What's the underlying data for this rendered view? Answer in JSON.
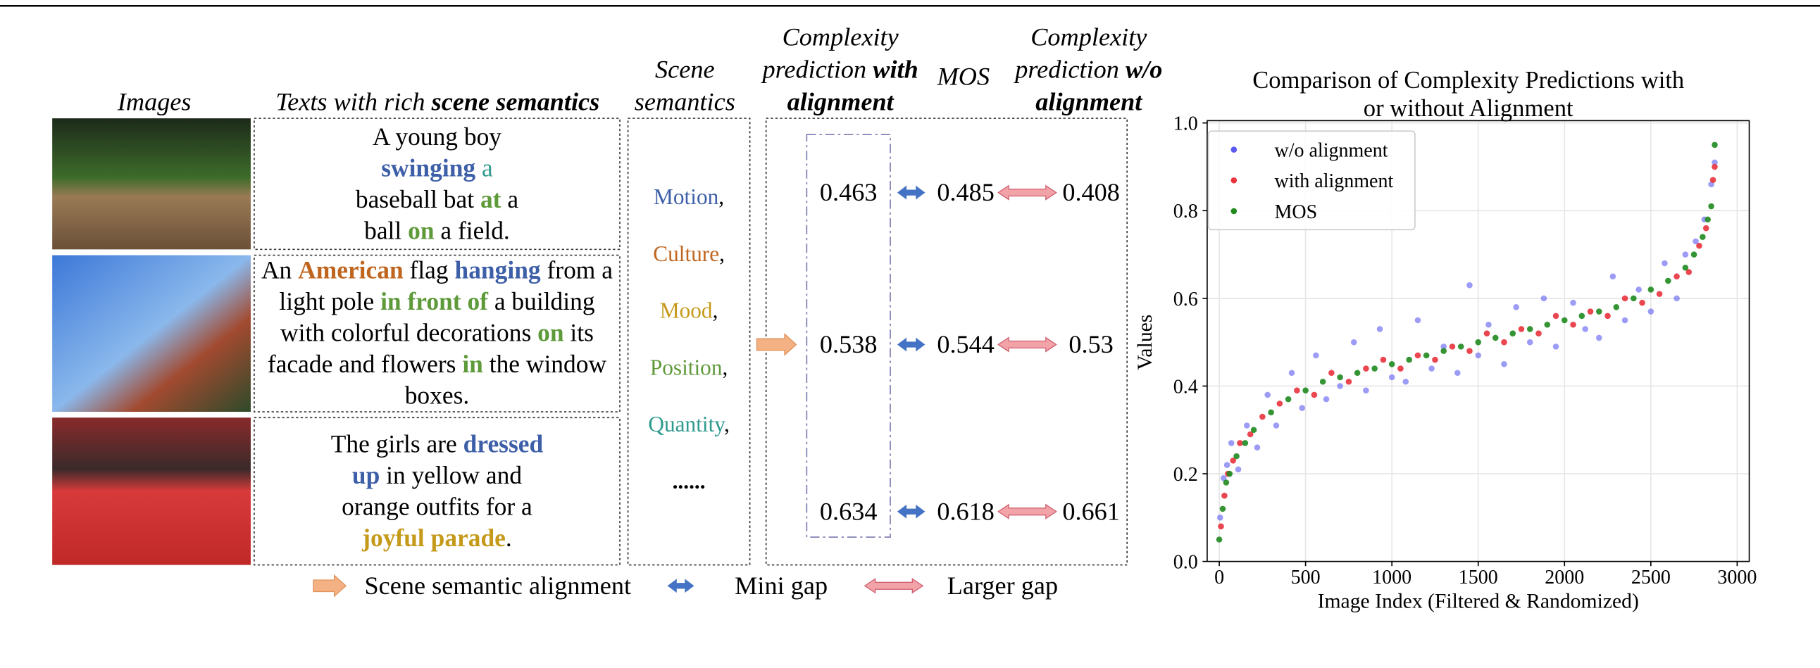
{
  "figure": {
    "headers": {
      "images": "Images",
      "texts": [
        {
          "text": "Texts with rich "
        },
        {
          "text": "scene semantics",
          "bold": true
        }
      ],
      "scene": "Scene semantics",
      "with": [
        {
          "text": "Complexity prediction "
        },
        {
          "text": "with alignment",
          "bold": true
        }
      ],
      "mos": "MOS",
      "without": [
        {
          "text": "Complexity prediction "
        },
        {
          "text": "w/o alignment",
          "bold": true
        }
      ]
    },
    "captions": [
      [
        {
          "text": "A young boy "
        },
        {
          "text": "swinging",
          "bold": true,
          "color": "#3d5fa8"
        },
        {
          "text": " "
        },
        {
          "text": "a",
          "color": "#2e9a8e"
        },
        {
          "text": " baseball bat "
        },
        {
          "text": "at",
          "bold": true,
          "color": "#5e9a3a"
        },
        {
          "text": " a ball "
        },
        {
          "text": "on",
          "bold": true,
          "color": "#5e9a3a"
        },
        {
          "text": " a field."
        }
      ],
      [
        {
          "text": "An "
        },
        {
          "text": "American",
          "bold": true,
          "color": "#c0651e"
        },
        {
          "text": " flag "
        },
        {
          "text": "hanging",
          "bold": true,
          "color": "#3d5fa8"
        },
        {
          "text": " from a light pole "
        },
        {
          "text": "in front of",
          "bold": true,
          "color": "#5e9a3a"
        },
        {
          "text": " a building with colorful decorations "
        },
        {
          "text": "on",
          "bold": true,
          "color": "#5e9a3a"
        },
        {
          "text": " its facade and flowers "
        },
        {
          "text": "in",
          "bold": true,
          "color": "#5e9a3a"
        },
        {
          "text": " the window boxes."
        }
      ],
      [
        {
          "text": "The girls are "
        },
        {
          "text": "dressed up",
          "bold": true,
          "color": "#3d5fa8"
        },
        {
          "text": " in yellow and orange outfits for a "
        },
        {
          "text": "joyful parade",
          "bold": true,
          "color": "#c59a1a"
        },
        {
          "text": "."
        }
      ]
    ],
    "semantics": [
      [
        {
          "text": "Motion",
          "color": "#3d5fa8"
        },
        {
          "text": ","
        }
      ],
      [
        {
          "text": "Culture",
          "color": "#c0651e"
        },
        {
          "text": ","
        }
      ],
      [
        {
          "text": "Mood",
          "color": "#c59a1a"
        },
        {
          "text": ","
        }
      ],
      [
        {
          "text": "Position",
          "color": "#5e9a3a"
        },
        {
          "text": ","
        }
      ],
      [
        {
          "text": "Quantity",
          "color": "#2e9a8e"
        },
        {
          "text": ","
        }
      ],
      [
        {
          "text": "......",
          "bold": true
        }
      ]
    ],
    "scores": [
      {
        "with": 0.463,
        "mos": 0.485,
        "without": 0.408
      },
      {
        "with": 0.538,
        "mos": 0.544,
        "without": 0.53
      },
      {
        "with": 0.634,
        "mos": 0.618,
        "without": 0.661
      }
    ],
    "legend": [
      "Scene semantic alignment",
      "Mini gap",
      "Larger gap"
    ]
  },
  "chart_data": {
    "type": "scatter",
    "title": "Comparison of Complexity Predictions with or without Alignment",
    "x_label": "Image Index (Filtered & Randomized)",
    "y_label": "Values",
    "xlim": [
      -70,
      3070
    ],
    "ylim": [
      0,
      1
    ],
    "xticks": [
      0,
      500,
      1000,
      1500,
      2000,
      2500,
      3000
    ],
    "yticks": [
      {
        "value": 0,
        "label": "0.0"
      },
      0.2,
      0.4,
      0.6,
      0.8,
      {
        "value": 1,
        "label": "1.0"
      }
    ],
    "grid": true,
    "legend_position": "upper left",
    "series": [
      {
        "name": "w/o alignment",
        "color": "#5a5af0",
        "x": [
          5,
          25,
          45,
          70,
          110,
          160,
          220,
          280,
          330,
          420,
          480,
          560,
          620,
          700,
          780,
          850,
          930,
          1000,
          1080,
          1150,
          1230,
          1300,
          1380,
          1450,
          1500,
          1560,
          1650,
          1720,
          1800,
          1880,
          1950,
          2050,
          2120,
          2200,
          2280,
          2350,
          2430,
          2500,
          2580,
          2650,
          2700,
          2760,
          2810,
          2850,
          2870
        ],
        "values": [
          0.1,
          0.19,
          0.22,
          0.27,
          0.21,
          0.31,
          0.26,
          0.38,
          0.31,
          0.43,
          0.35,
          0.47,
          0.37,
          0.4,
          0.5,
          0.39,
          0.53,
          0.42,
          0.41,
          0.55,
          0.44,
          0.49,
          0.43,
          0.63,
          0.47,
          0.54,
          0.45,
          0.58,
          0.5,
          0.6,
          0.49,
          0.59,
          0.53,
          0.51,
          0.65,
          0.55,
          0.62,
          0.57,
          0.68,
          0.6,
          0.7,
          0.73,
          0.78,
          0.86,
          0.91
        ]
      },
      {
        "name": "with alignment",
        "color": "#e8323c",
        "x": [
          10,
          30,
          50,
          80,
          120,
          180,
          250,
          350,
          450,
          550,
          650,
          750,
          850,
          950,
          1050,
          1150,
          1250,
          1350,
          1450,
          1550,
          1650,
          1750,
          1850,
          1950,
          2050,
          2150,
          2250,
          2350,
          2450,
          2550,
          2650,
          2720,
          2780,
          2820,
          2860,
          2870
        ],
        "values": [
          0.08,
          0.15,
          0.2,
          0.23,
          0.27,
          0.29,
          0.33,
          0.36,
          0.39,
          0.38,
          0.43,
          0.41,
          0.44,
          0.46,
          0.44,
          0.47,
          0.46,
          0.49,
          0.48,
          0.52,
          0.5,
          0.53,
          0.52,
          0.56,
          0.54,
          0.57,
          0.56,
          0.6,
          0.59,
          0.61,
          0.65,
          0.66,
          0.72,
          0.76,
          0.87,
          0.9
        ]
      },
      {
        "name": "MOS",
        "color": "#1f8a1f",
        "x": [
          0,
          20,
          40,
          60,
          100,
          150,
          200,
          300,
          400,
          500,
          600,
          700,
          800,
          900,
          1000,
          1100,
          1200,
          1300,
          1400,
          1500,
          1600,
          1700,
          1800,
          1900,
          2000,
          2100,
          2200,
          2300,
          2400,
          2500,
          2600,
          2700,
          2750,
          2800,
          2830,
          2850,
          2870
        ],
        "values": [
          0.05,
          0.12,
          0.18,
          0.2,
          0.24,
          0.27,
          0.3,
          0.34,
          0.37,
          0.39,
          0.41,
          0.42,
          0.43,
          0.44,
          0.45,
          0.46,
          0.47,
          0.48,
          0.49,
          0.5,
          0.51,
          0.52,
          0.53,
          0.54,
          0.55,
          0.56,
          0.57,
          0.58,
          0.6,
          0.62,
          0.64,
          0.67,
          0.7,
          0.74,
          0.78,
          0.81,
          0.95
        ]
      }
    ]
  }
}
